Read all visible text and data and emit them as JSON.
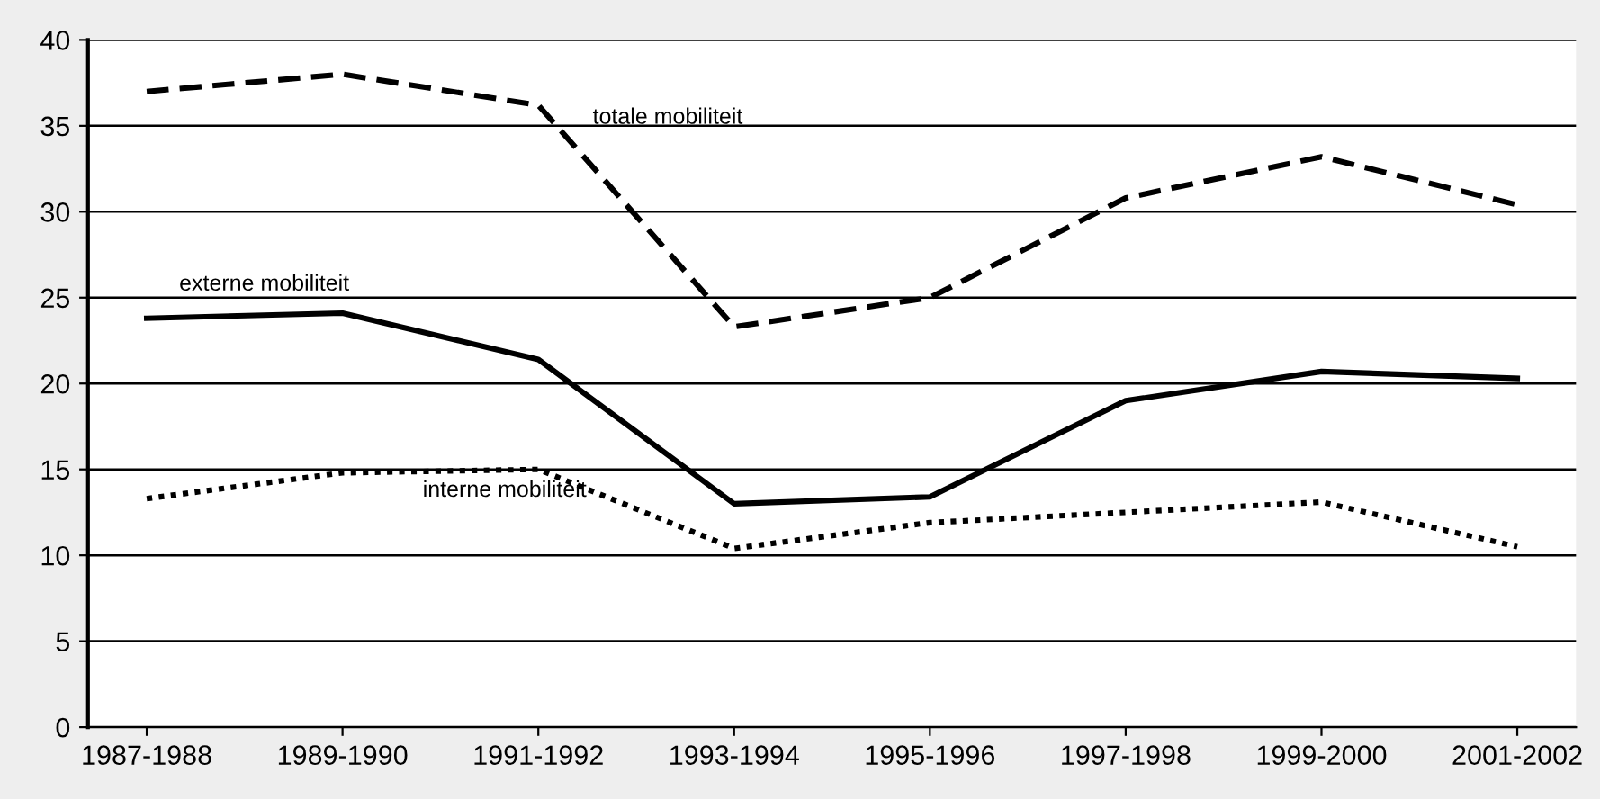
{
  "chart_data": {
    "type": "line",
    "categories": [
      "1987-1988",
      "1989-1990",
      "1991-1992",
      "1993-1994",
      "1995-1996",
      "1997-1998",
      "1999-2000",
      "2001-2002"
    ],
    "series": [
      {
        "name": "totale mobiliteit",
        "color": "#000000",
        "line_style": "dashed",
        "values": [
          37,
          38,
          36.2,
          23.3,
          25,
          30.8,
          33.2,
          30.4
        ]
      },
      {
        "name": "externe mobiliteit",
        "color": "#000000",
        "line_style": "solid",
        "values": [
          23.8,
          24.1,
          21.4,
          13,
          13.4,
          19,
          20.7,
          20.3
        ]
      },
      {
        "name": "interne mobiliteit",
        "color": "#000000",
        "line_style": "dotted",
        "values": [
          13.3,
          14.8,
          15,
          10.4,
          11.9,
          12.5,
          13.1,
          10.5
        ]
      }
    ],
    "ylim": [
      0,
      40
    ],
    "yticks": [
      0,
      5,
      10,
      15,
      20,
      25,
      30,
      35,
      40
    ],
    "grid": "y",
    "marker": "none",
    "legend": false
  }
}
